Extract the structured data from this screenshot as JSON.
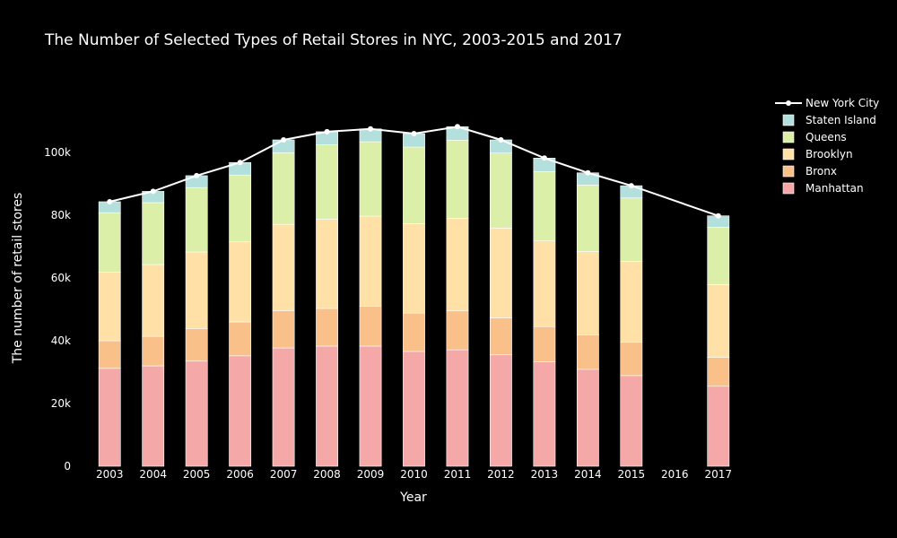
{
  "chart_data": {
    "type": "bar",
    "stacked": true,
    "title": "The Number of Selected Types of Retail Stores in NYC, 2003-2015 and 2017",
    "xlabel": "Year",
    "ylabel": "The number of retail stores",
    "categories": [
      "2003",
      "2004",
      "2005",
      "2006",
      "2007",
      "2008",
      "2009",
      "2010",
      "2011",
      "2012",
      "2013",
      "2014",
      "2015",
      "2016",
      "2017"
    ],
    "ylim": [
      0,
      120000
    ],
    "yticks": [
      0,
      20000,
      40000,
      60000,
      80000,
      100000
    ],
    "ytick_labels": [
      "0",
      "20k",
      "40k",
      "60k",
      "80k",
      "100k"
    ],
    "series": [
      {
        "name": "Manhattan",
        "color": "#F4A9A8",
        "values": [
          31200,
          32000,
          33500,
          35200,
          37700,
          38300,
          38300,
          36600,
          37100,
          35500,
          33300,
          30900,
          28900,
          null,
          25500
        ]
      },
      {
        "name": "Bronx",
        "color": "#F9C08A",
        "values": [
          8800,
          9400,
          10400,
          10800,
          11900,
          12000,
          12700,
          12200,
          12400,
          11800,
          11200,
          10900,
          10600,
          null,
          9200
        ]
      },
      {
        "name": "Brooklyn",
        "color": "#FFE0A6",
        "values": [
          21800,
          22900,
          24400,
          25500,
          27500,
          28400,
          28700,
          28500,
          29500,
          28600,
          27300,
          26600,
          25800,
          null,
          23200
        ]
      },
      {
        "name": "Queens",
        "color": "#DCEFA8",
        "values": [
          19000,
          19700,
          20500,
          21300,
          22800,
          23700,
          23700,
          24400,
          24900,
          23900,
          22100,
          21200,
          20200,
          null,
          18300
        ]
      },
      {
        "name": "Staten Island",
        "color": "#B3E0DD",
        "values": [
          3500,
          3600,
          3800,
          4000,
          4100,
          4200,
          4100,
          4300,
          4300,
          4200,
          4300,
          3900,
          3900,
          null,
          3600
        ]
      }
    ],
    "line_series": {
      "name": "New York City",
      "color": "#ffffff",
      "values": [
        84300,
        87600,
        92600,
        96800,
        104000,
        106600,
        107500,
        106000,
        108200,
        104000,
        98200,
        93500,
        89400,
        null,
        79800
      ]
    },
    "legend": {
      "placement": "top-right",
      "order": [
        "New York City",
        "Staten Island",
        "Queens",
        "Brooklyn",
        "Bronx",
        "Manhattan"
      ]
    },
    "grid": false
  }
}
